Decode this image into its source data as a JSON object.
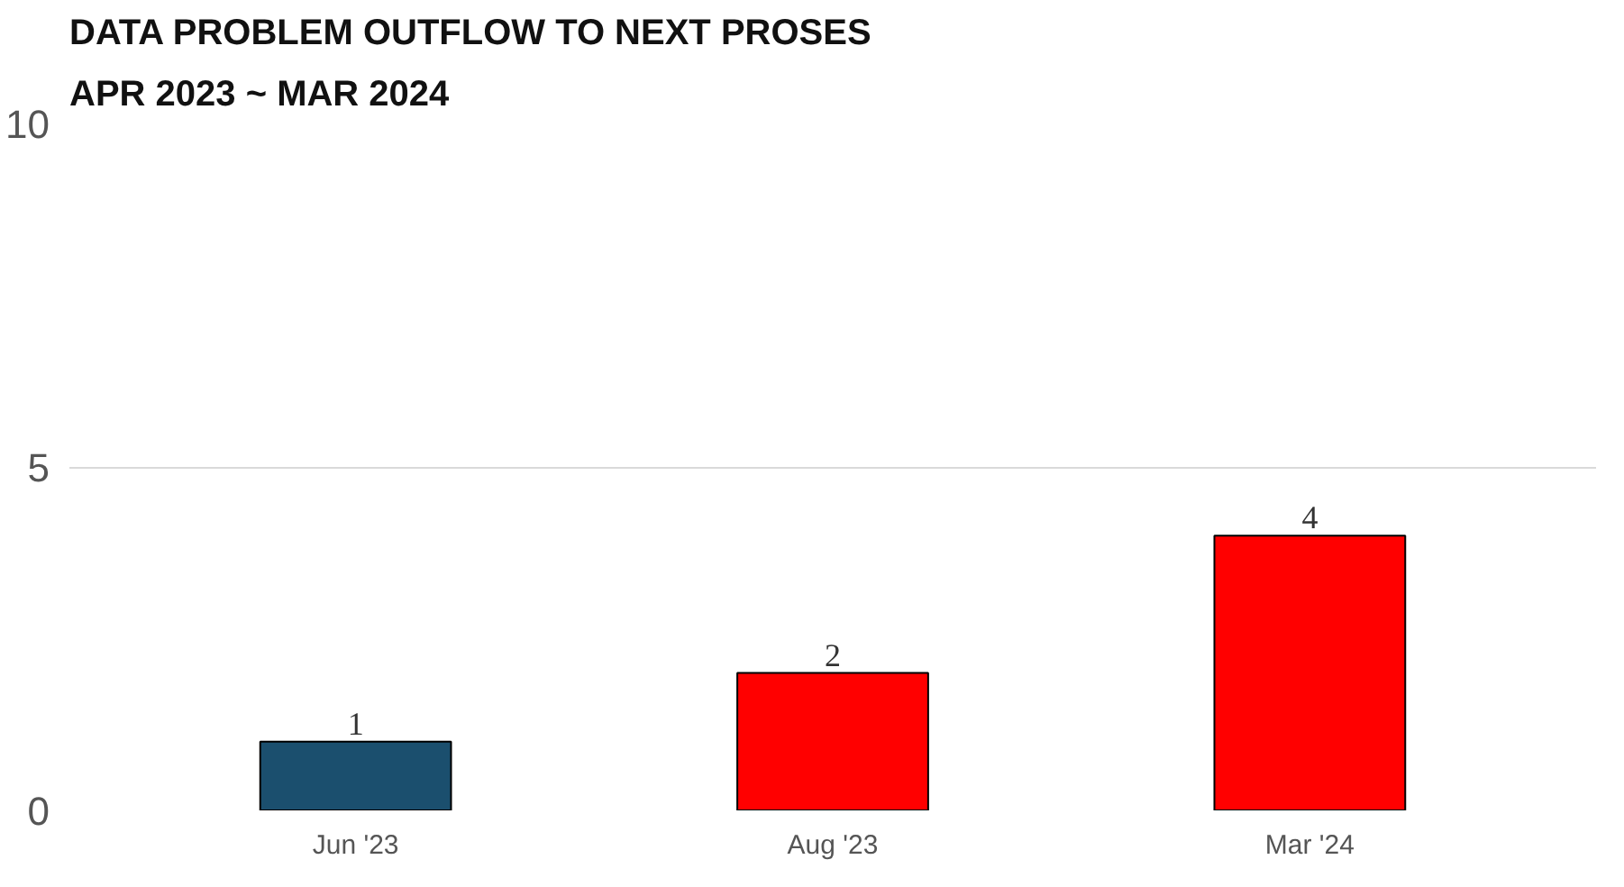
{
  "chart_data": {
    "type": "bar",
    "title": "DATA PROBLEM OUTFLOW TO NEXT PROSES",
    "subtitle": "APR 2023 ~ MAR 2024",
    "categories": [
      "Jun '23",
      "Aug '23",
      "Mar '24"
    ],
    "values": [
      1,
      2,
      4
    ],
    "colors": [
      "#1b4f6e",
      "#ff0000",
      "#ff0000"
    ],
    "ylim": [
      0,
      10
    ],
    "yticks": [
      0,
      5,
      10
    ],
    "grid": "y",
    "data_labels": true
  }
}
